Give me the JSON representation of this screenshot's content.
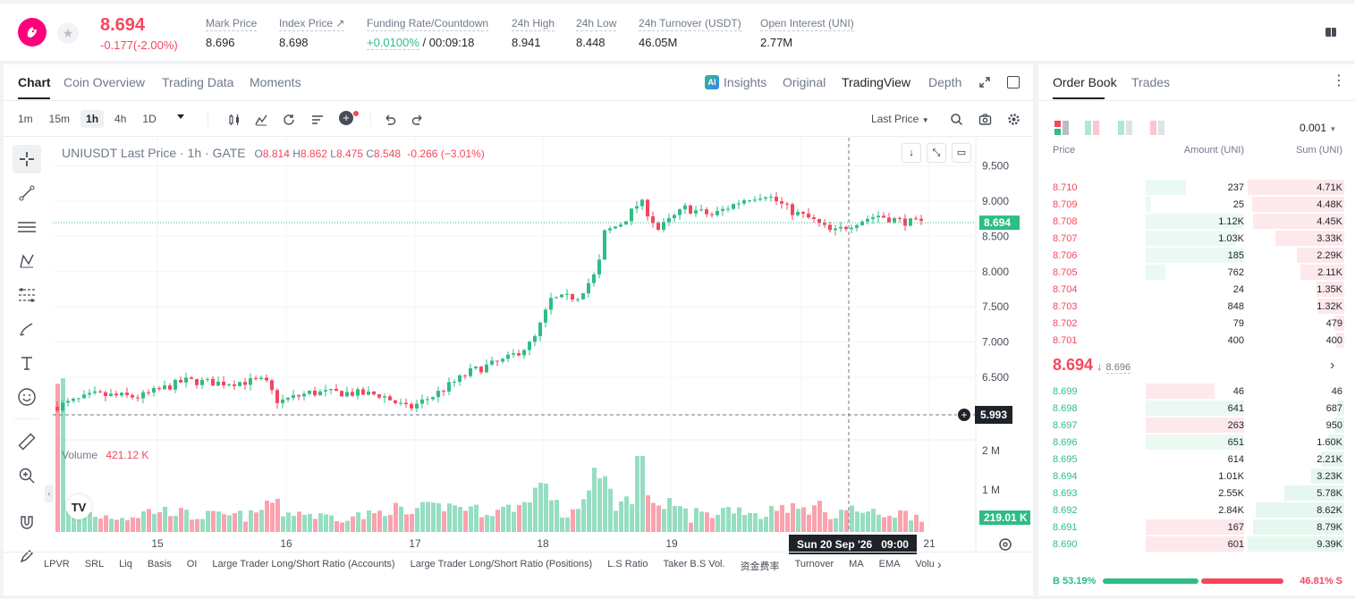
{
  "header": {
    "last_price": "8.694",
    "change": "-0.177(-2.00%)",
    "stats": [
      {
        "label": "Mark Price",
        "value": "8.696"
      },
      {
        "label": "Index Price ↗",
        "value": "8.698"
      },
      {
        "label": "Funding Rate/Countdown",
        "value": "+0.0100%",
        "value2": " / 00:09:18"
      },
      {
        "label": "24h High",
        "value": "8.941"
      },
      {
        "label": "24h Low",
        "value": "8.448"
      },
      {
        "label": "24h Turnover (USDT)",
        "value": "46.05M"
      },
      {
        "label": "Open Interest (UNI)",
        "value": "2.77M"
      }
    ]
  },
  "chart_tabs": [
    "Chart",
    "Coin Overview",
    "Trading Data",
    "Moments"
  ],
  "view_tabs": {
    "insights": "Insights",
    "original": "Original",
    "tradingview": "TradingView",
    "depth": "Depth"
  },
  "timeframes": [
    "1m",
    "15m",
    "1h",
    "4h",
    "1D"
  ],
  "price_type": "Last Price",
  "legend": {
    "symbol": "UNIUSDT Last Price · 1h · GATE",
    "o_l": "O",
    "o": "8.814",
    "h_l": "H",
    "h": "8.862",
    "l_l": "L",
    "l": "8.475",
    "c_l": "C",
    "c": "8.548",
    "chg": "-0.266 (−3.01%)"
  },
  "volume": {
    "label": "Volume",
    "value": "421.12 K",
    "tag": "219.01 K"
  },
  "price_tag": "8.694",
  "cursor_tag": "5.993",
  "time_tag": "Sun 20 Sep '26   09:00",
  "y_labels": [
    "9.500",
    "9.000",
    "8.500",
    "8.000",
    "7.500",
    "7.000",
    "6.500"
  ],
  "vol_labels": [
    "2 M",
    "1 M"
  ],
  "x_labels": [
    "15",
    "16",
    "17",
    "18",
    "19",
    "21"
  ],
  "indicators": [
    "LPVR",
    "SRL",
    "Liq",
    "Basis",
    "OI",
    "Large Trader Long/Short Ratio (Accounts)",
    "Large Trader Long/Short Ratio (Positions)",
    "L.S Ratio",
    "Taker B.S Vol.",
    "资金费率",
    "Turnover",
    "MA",
    "EMA",
    "Volu"
  ],
  "orderbook": {
    "tabs": [
      "Order Book",
      "Trades"
    ],
    "precision": "0.001",
    "cols": [
      "Price",
      "Amount (UNI)",
      "Sum (UNI)"
    ],
    "asks": [
      {
        "p": "8.710",
        "a": "237",
        "s": "4.71K",
        "af": 0.41,
        "sf": 1.0
      },
      {
        "p": "8.709",
        "a": "25",
        "s": "4.48K",
        "af": 0.05,
        "sf": 0.95
      },
      {
        "p": "8.708",
        "a": "1.12K",
        "s": "4.45K",
        "af": 1.0,
        "sf": 0.94
      },
      {
        "p": "8.707",
        "a": "1.03K",
        "s": "3.33K",
        "af": 0.92,
        "sf": 0.71
      },
      {
        "p": "8.706",
        "a": "185",
        "s": "2.29K",
        "af": 1.0,
        "sf": 0.49
      },
      {
        "p": "8.705",
        "a": "762",
        "s": "2.11K",
        "af": 0.2,
        "sf": 0.45
      },
      {
        "p": "8.704",
        "a": "24",
        "s": "1.35K",
        "af": 0.0,
        "sf": 0.29
      },
      {
        "p": "8.703",
        "a": "848",
        "s": "1.32K",
        "af": 0.0,
        "sf": 0.28
      },
      {
        "p": "8.702",
        "a": "79",
        "s": "479",
        "af": 0.0,
        "sf": 0.1
      },
      {
        "p": "8.701",
        "a": "400",
        "s": "400",
        "af": 0.0,
        "sf": 0.08
      }
    ],
    "mid": {
      "price": "8.694",
      "mark": "8.696"
    },
    "bids": [
      {
        "p": "8.699",
        "a": "46",
        "s": "46",
        "af": 0.7,
        "sf": 0.0
      },
      {
        "p": "8.698",
        "a": "641",
        "s": "687",
        "af": 1.0,
        "sf": 0.07
      },
      {
        "p": "8.697",
        "a": "263",
        "s": "950",
        "af": 1.0,
        "sf": 0.1
      },
      {
        "p": "8.696",
        "a": "651",
        "s": "1.60K",
        "af": 1.0,
        "sf": 0.17
      },
      {
        "p": "8.695",
        "a": "614",
        "s": "2.21K",
        "af": 0.0,
        "sf": 0.24
      },
      {
        "p": "8.694",
        "a": "1.01K",
        "s": "3.23K",
        "af": 0.0,
        "sf": 0.34
      },
      {
        "p": "8.693",
        "a": "2.55K",
        "s": "5.78K",
        "af": 0.0,
        "sf": 0.62
      },
      {
        "p": "8.692",
        "a": "2.84K",
        "s": "8.62K",
        "af": 0.0,
        "sf": 0.92
      },
      {
        "p": "8.691",
        "a": "167",
        "s": "8.79K",
        "af": 1.0,
        "sf": 0.94
      },
      {
        "p": "8.690",
        "a": "601",
        "s": "9.39K",
        "af": 1.0,
        "sf": 1.0
      }
    ],
    "ratio": {
      "buy": "B 53.19%",
      "sell": "46.81% S",
      "buy_frac": 0.5319
    }
  },
  "colors": {
    "up": "#2ebd85",
    "down": "#f6465d"
  }
}
